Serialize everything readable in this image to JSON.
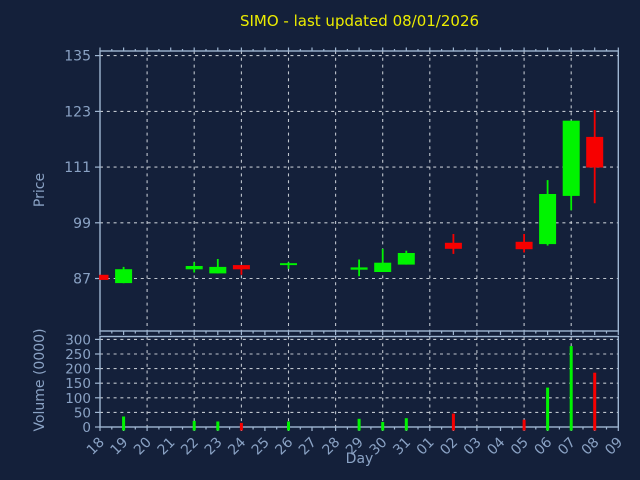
{
  "title": "SIMO - last updated 08/01/2026",
  "colors": {
    "background": "#14203a",
    "spine": "#9fb6d2",
    "tick_label": "#8aa2c4",
    "grid": "#d2d7de",
    "title": "#ecec00",
    "up": "#00f400",
    "down": "#f70000"
  },
  "chart_data": [
    {
      "type": "candlestick",
      "title": "SIMO - last updated 08/01/2026",
      "xlabel": "Day",
      "ylabel": "Price",
      "categories": [
        "18",
        "19",
        "20",
        "21",
        "22",
        "23",
        "24",
        "25",
        "26",
        "27",
        "28",
        "29",
        "30",
        "31",
        "01",
        "02",
        "03",
        "04",
        "05",
        "06",
        "07",
        "08",
        "09"
      ],
      "yticks": [
        87,
        99,
        111,
        123,
        135
      ],
      "ylim": [
        75.7,
        136
      ],
      "grid": true,
      "x_gridline_every": 2,
      "legend": false,
      "candles": [
        {
          "day": "18",
          "open": 87.8,
          "high": 87.8,
          "low": 86.7,
          "close": 86.7
        },
        {
          "day": "19",
          "open": 86.0,
          "high": 89.5,
          "low": 86.0,
          "close": 89.0
        },
        {
          "day": "22",
          "open": 89.0,
          "high": 90.5,
          "low": 88.3,
          "close": 89.7
        },
        {
          "day": "23",
          "open": 88.1,
          "high": 91.2,
          "low": 88.1,
          "close": 89.5
        },
        {
          "day": "24",
          "open": 89.9,
          "high": 89.9,
          "low": 87.8,
          "close": 89.0
        },
        {
          "day": "26",
          "open": 89.9,
          "high": 90.5,
          "low": 89.1,
          "close": 90.3
        },
        {
          "day": "29",
          "open": 88.9,
          "high": 91.1,
          "low": 87.5,
          "close": 89.4
        },
        {
          "day": "30",
          "open": 88.4,
          "high": 93.4,
          "low": 88.4,
          "close": 90.4
        },
        {
          "day": "31",
          "open": 90.0,
          "high": 93.0,
          "low": 90.0,
          "close": 92.5
        },
        {
          "day": "02",
          "open": 94.7,
          "high": 96.6,
          "low": 92.3,
          "close": 93.4
        },
        {
          "day": "05",
          "open": 94.9,
          "high": 96.6,
          "low": 92.6,
          "close": 93.3
        },
        {
          "day": "06",
          "open": 94.4,
          "high": 108.2,
          "low": 94.1,
          "close": 105.2
        },
        {
          "day": "07",
          "open": 104.8,
          "high": 121.0,
          "low": 101.7,
          "close": 121.0
        },
        {
          "day": "08",
          "open": 117.5,
          "high": 123.3,
          "low": 103.2,
          "close": 110.9
        }
      ]
    },
    {
      "type": "bar",
      "ylabel": "Volume (0000)",
      "categories": [
        "18",
        "19",
        "20",
        "21",
        "22",
        "23",
        "24",
        "25",
        "26",
        "27",
        "28",
        "29",
        "30",
        "31",
        "01",
        "02",
        "03",
        "04",
        "05",
        "06",
        "07",
        "08",
        "09"
      ],
      "yticks": [
        0,
        50,
        100,
        150,
        200,
        250,
        300
      ],
      "ylim": [
        0,
        310
      ],
      "grid": true,
      "x_gridline_every": 2,
      "bars": [
        {
          "day": "19",
          "value": 36,
          "direction": "up"
        },
        {
          "day": "22",
          "value": 21,
          "direction": "up"
        },
        {
          "day": "23",
          "value": 19,
          "direction": "up"
        },
        {
          "day": "24",
          "value": 14,
          "direction": "down"
        },
        {
          "day": "26",
          "value": 19,
          "direction": "up"
        },
        {
          "day": "29",
          "value": 28,
          "direction": "up"
        },
        {
          "day": "30",
          "value": 17,
          "direction": "up"
        },
        {
          "day": "31",
          "value": 30,
          "direction": "up"
        },
        {
          "day": "02",
          "value": 46,
          "direction": "down"
        },
        {
          "day": "05",
          "value": 25,
          "direction": "down"
        },
        {
          "day": "06",
          "value": 135,
          "direction": "up"
        },
        {
          "day": "07",
          "value": 277,
          "direction": "up"
        },
        {
          "day": "08",
          "value": 186,
          "direction": "down"
        }
      ]
    }
  ]
}
